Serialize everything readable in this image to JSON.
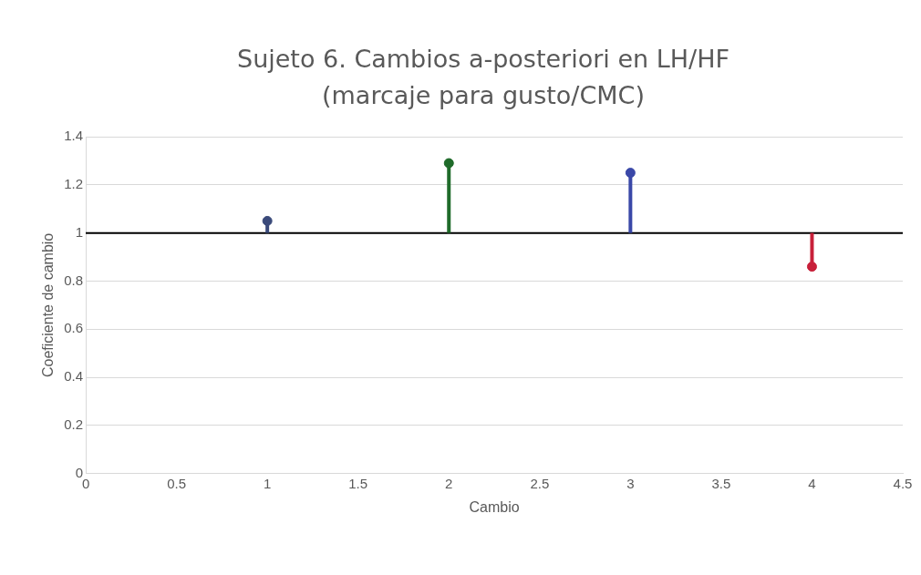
{
  "chart_data": {
    "type": "lollipop",
    "title": "Sujeto 6. Cambios a-posteriori en LH/HF (marcaje para gusto/CMC)",
    "xlabel": "Cambio",
    "ylabel": "Coeficiente de cambio",
    "x": [
      1,
      2,
      3,
      4
    ],
    "values": [
      1.05,
      1.29,
      1.25,
      0.86
    ],
    "errors": [
      [
        1,
        1.05
      ],
      [
        1,
        1.29
      ],
      [
        1,
        1.25
      ],
      [
        0.86,
        1
      ]
    ],
    "colors": [
      "#3a4a7a",
      "#1f6b2a",
      "#3a48a8",
      "#c8203a"
    ],
    "xlim": [
      0,
      4.5
    ],
    "xticks": [
      0,
      0.5,
      1,
      1.5,
      2,
      2.5,
      3,
      3.5,
      4,
      4.5
    ],
    "ylim": [
      0,
      1.4
    ],
    "yticks": [
      0,
      0.2,
      0.4,
      0.6,
      0.8,
      1,
      1.2,
      1.4
    ],
    "ref_lines": [
      {
        "axis": "y",
        "value": 1,
        "color": "#000000"
      }
    ],
    "grid": "y",
    "legend": false,
    "marker": "circle"
  }
}
